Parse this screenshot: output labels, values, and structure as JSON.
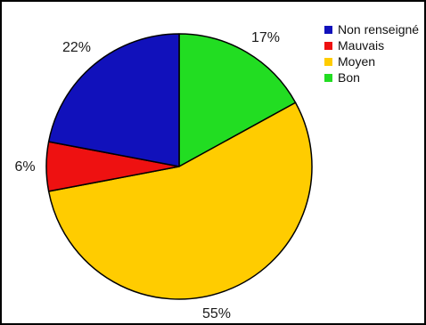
{
  "chart_data": {
    "type": "pie",
    "title": "",
    "slices": [
      {
        "label": "Bon",
        "value": 17,
        "display": "17%",
        "color": "#22dd22"
      },
      {
        "label": "Moyen",
        "value": 55,
        "display": "55%",
        "color": "#ffcc00"
      },
      {
        "label": "Mauvais",
        "value": 6,
        "display": "6%",
        "color": "#ee1111"
      },
      {
        "label": "Non renseigné",
        "value": 22,
        "display": "22%",
        "color": "#1111bb"
      }
    ],
    "start": "12 o'clock",
    "direction": "clockwise",
    "legend": {
      "position": "top-right",
      "items": [
        {
          "label": "Non renseigné",
          "color": "#1111bb"
        },
        {
          "label": "Mauvais",
          "color": "#ee1111"
        },
        {
          "label": "Moyen",
          "color": "#ffcc00"
        },
        {
          "label": "Bon",
          "color": "#22dd22"
        }
      ]
    }
  }
}
